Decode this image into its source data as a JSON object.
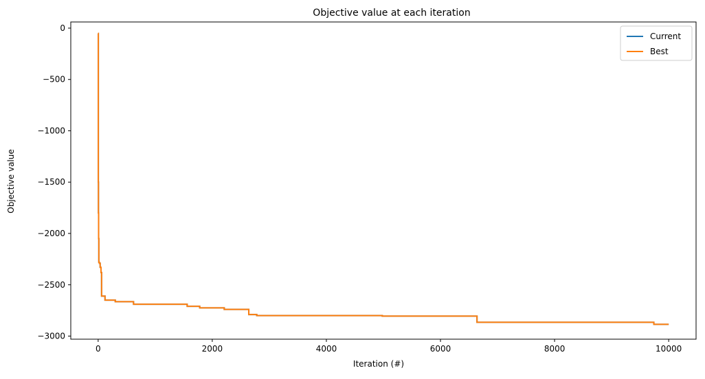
{
  "chart_data": {
    "type": "line",
    "title": "Objective value at each iteration",
    "xlabel": "Iteration (#)",
    "ylabel": "Objective value",
    "xlim": [
      -480,
      10480
    ],
    "ylim": [
      -3030,
      60
    ],
    "xticks": [
      0,
      2000,
      4000,
      6000,
      8000,
      10000
    ],
    "yticks": [
      0,
      -500,
      -1000,
      -1500,
      -2000,
      -2500,
      -3000
    ],
    "xtick_labels": [
      "0",
      "2000",
      "4000",
      "6000",
      "8000",
      "10000"
    ],
    "ytick_labels": [
      "0",
      "−500",
      "−1000",
      "−1500",
      "−2000",
      "−2500",
      "−3000"
    ],
    "grid": false,
    "legend_position": "top-right",
    "series": [
      {
        "name": "Current",
        "color": "#1f77b4",
        "step": true,
        "x": [
          0,
          3,
          5,
          8,
          12,
          20,
          35,
          50,
          60,
          120,
          300,
          620,
          1560,
          1780,
          2210,
          2640,
          2780,
          4980,
          6640,
          9740,
          10000
        ],
        "y": [
          -50,
          -1500,
          -1800,
          -2050,
          -2280,
          -2290,
          -2330,
          -2380,
          -2610,
          -2650,
          -2665,
          -2690,
          -2710,
          -2725,
          -2740,
          -2790,
          -2800,
          -2805,
          -2865,
          -2885,
          -2885
        ]
      },
      {
        "name": "Best",
        "color": "#ff7f0e",
        "step": true,
        "x": [
          0,
          3,
          5,
          8,
          12,
          20,
          35,
          50,
          60,
          120,
          300,
          620,
          1560,
          1780,
          2210,
          2640,
          2780,
          4980,
          6640,
          9740,
          10000
        ],
        "y": [
          -50,
          -1500,
          -1800,
          -2050,
          -2280,
          -2290,
          -2330,
          -2380,
          -2610,
          -2650,
          -2665,
          -2690,
          -2710,
          -2725,
          -2740,
          -2790,
          -2800,
          -2805,
          -2865,
          -2885,
          -2885
        ]
      }
    ]
  }
}
